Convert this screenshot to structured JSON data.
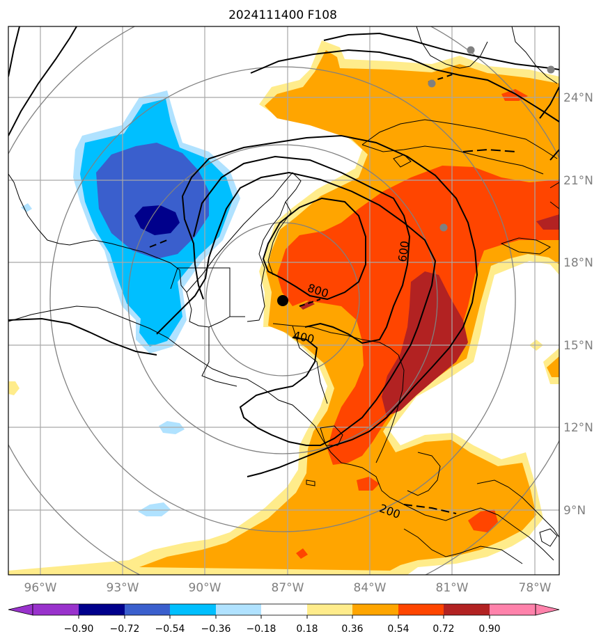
{
  "title": "2024111400 F108",
  "lon_ticks": [
    "96°W",
    "93°W",
    "90°W",
    "87°W",
    "84°W",
    "81°W",
    "78°W"
  ],
  "lat_ticks": [
    "24°N",
    "21°N",
    "18°N",
    "15°N",
    "12°N",
    "9°N"
  ],
  "contour_labels": [
    "800",
    "600",
    "400",
    "200"
  ],
  "colorbar": {
    "ticks": [
      "−0.90",
      "−0.72",
      "−0.54",
      "−0.36",
      "−0.18",
      "0.18",
      "0.36",
      "0.54",
      "0.72",
      "0.90"
    ],
    "colors": [
      "#9932cc",
      "#00008b",
      "#3a5fcd",
      "#00bfff",
      "#b0e2ff",
      "#ffffff",
      "#ffec8b",
      "#ffa500",
      "#ff4500",
      "#b22222",
      "#ff82ab"
    ]
  },
  "colors": {
    "deep_blue": "#00008b",
    "royal_blue": "#3a5fcd",
    "sky_blue": "#00bfff",
    "light_blue": "#b0e2ff",
    "light_yellow": "#ffec8b",
    "orange": "#ffa500",
    "orange_red": "#ff4500",
    "firebrick": "#b22222",
    "grid_gray": "#808080"
  }
}
